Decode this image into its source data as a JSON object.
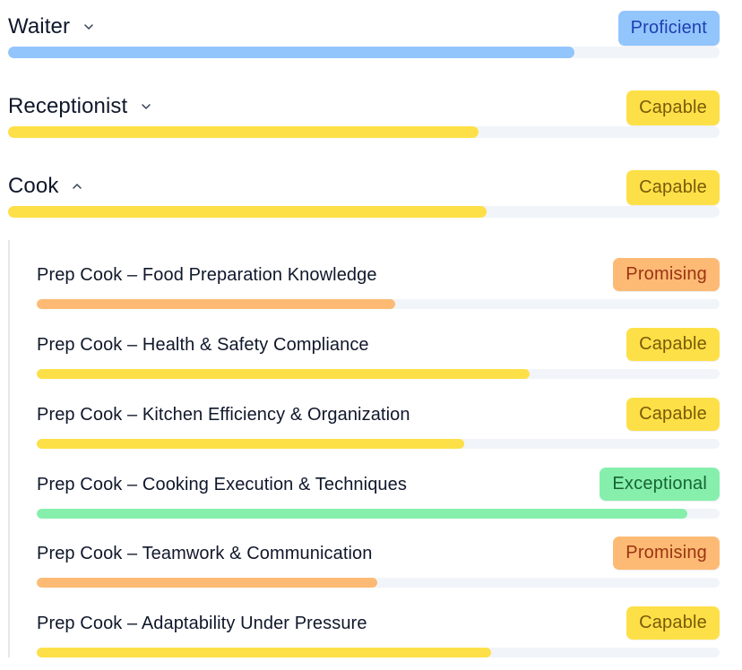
{
  "roles": [
    {
      "title": "Waiter",
      "expanded": false,
      "chevron_icon": "chevron-down-icon",
      "level": "Proficient",
      "level_color": "#93c5fd",
      "score": 0.796
    },
    {
      "title": "Receptionist",
      "expanded": false,
      "chevron_icon": "chevron-down-icon",
      "level": "Capable",
      "level_color": "#fde047",
      "score": 0.661
    },
    {
      "title": "Cook",
      "expanded": true,
      "chevron_icon": "chevron-up-icon",
      "level": "Capable",
      "level_color": "#fde047",
      "score": 0.673
    }
  ],
  "cook_skills": [
    {
      "title": "Prep Cook – Food Preparation Knowledge",
      "level": "Promising",
      "level_color": "#fdba74",
      "score": 0.525
    },
    {
      "title": "Prep Cook – Health & Safety Compliance",
      "level": "Capable",
      "level_color": "#fde047",
      "score": 0.722
    },
    {
      "title": "Prep Cook – Kitchen Efficiency & Organization",
      "level": "Capable",
      "level_color": "#fde047",
      "score": 0.626
    },
    {
      "title": "Prep Cook – Cooking Execution & Techniques",
      "level": "Exceptional",
      "level_color": "#86efac",
      "score": 0.953
    },
    {
      "title": "Prep Cook – Teamwork & Communication",
      "level": "Promising",
      "level_color": "#fdba74",
      "score": 0.499
    },
    {
      "title": "Prep Cook – Adaptability Under Pressure",
      "level": "Capable",
      "level_color": "#fde047",
      "score": 0.665
    }
  ]
}
